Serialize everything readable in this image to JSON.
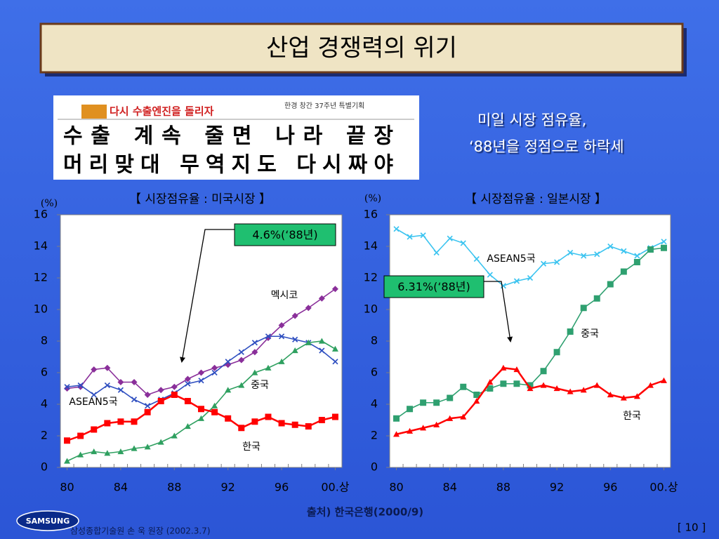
{
  "slide": {
    "title": "산업 경쟁력의 위기",
    "news": {
      "kicker": "다시 수출엔진을 돌리자",
      "masthead": "한경 창간 37주년 특별기획",
      "headline": [
        "수출 계속 줄면 나라 끝장",
        "머리맞대 무역지도 다시짜야"
      ]
    },
    "bullet": [
      "미일 시장 점유율,",
      "‘88년을 정점으로 하락세"
    ],
    "source": "출처) 한국은행(2000/9)",
    "logo": "SAMSUNG",
    "footer": "삼성종합기술원 손 욱 원장 (2002.3.7)",
    "page": "[ 10 ]"
  },
  "chart_data": [
    {
      "type": "line",
      "title": "【 시장점유율 : 미국시장 】",
      "y_label": "(%)",
      "x": [
        80,
        81,
        82,
        83,
        84,
        85,
        86,
        87,
        88,
        89,
        90,
        91,
        92,
        93,
        94,
        95,
        96,
        97,
        98,
        99,
        100
      ],
      "xlim": [
        79.5,
        100.5
      ],
      "xticks": [
        80,
        84,
        88,
        92,
        96,
        {
          "value": 100,
          "label": "00.상"
        }
      ],
      "ylim": [
        0,
        16
      ],
      "yticks": [
        0,
        2,
        4,
        6,
        8,
        10,
        12,
        14,
        16
      ],
      "series": [
        {
          "name": "멕시코",
          "color": "#8a2f9a",
          "marker": "diamond",
          "values": [
            5.0,
            5.1,
            6.2,
            6.3,
            5.4,
            5.4,
            4.6,
            4.9,
            5.1,
            5.6,
            6.0,
            6.3,
            6.5,
            6.8,
            7.3,
            8.2,
            9.0,
            9.6,
            10.1,
            10.7,
            11.3
          ]
        },
        {
          "name": "ASEAN5국",
          "color": "#2f4fc0",
          "marker": "x",
          "values": [
            5.1,
            5.2,
            4.6,
            5.2,
            4.9,
            4.3,
            3.9,
            4.3,
            4.7,
            5.3,
            5.5,
            6.0,
            6.7,
            7.3,
            7.9,
            8.3,
            8.3,
            8.1,
            7.9,
            7.4,
            6.7
          ]
        },
        {
          "name": "중국",
          "color": "#2fa060",
          "marker": "triangle",
          "values": [
            0.4,
            0.8,
            1.0,
            0.9,
            1.0,
            1.2,
            1.3,
            1.6,
            2.0,
            2.6,
            3.1,
            3.9,
            4.9,
            5.2,
            6.0,
            6.3,
            6.7,
            7.4,
            7.9,
            8.0,
            7.5
          ]
        },
        {
          "name": "한국",
          "color": "#ff0000",
          "marker": "square",
          "values": [
            1.7,
            2.0,
            2.4,
            2.8,
            2.9,
            2.9,
            3.5,
            4.2,
            4.6,
            4.2,
            3.7,
            3.5,
            3.1,
            2.5,
            2.9,
            3.2,
            2.8,
            2.7,
            2.6,
            3.0,
            3.2
          ]
        }
      ],
      "annotation": "4.6%(‘88년)"
    },
    {
      "type": "line",
      "title": "【 시장점유율 : 일본시장 】",
      "y_label": "(%)",
      "x": [
        80,
        81,
        82,
        83,
        84,
        85,
        86,
        87,
        88,
        89,
        90,
        91,
        92,
        93,
        94,
        95,
        96,
        97,
        98,
        99,
        100
      ],
      "xlim": [
        79.5,
        100.5
      ],
      "xticks": [
        80,
        84,
        88,
        92,
        96,
        {
          "value": 100,
          "label": "00.상"
        }
      ],
      "ylim": [
        0,
        16
      ],
      "yticks": [
        0,
        2,
        4,
        6,
        8,
        10,
        12,
        14,
        16
      ],
      "series": [
        {
          "name": "ASEAN5국",
          "color": "#3cc4f0",
          "marker": "x",
          "values": [
            15.1,
            14.6,
            14.7,
            13.6,
            14.5,
            14.2,
            13.2,
            12.2,
            11.5,
            11.8,
            12.0,
            12.9,
            13.0,
            13.6,
            13.4,
            13.5,
            14.0,
            13.7,
            13.4,
            13.9,
            14.3
          ]
        },
        {
          "name": "중국",
          "color": "#2fa070",
          "marker": "square",
          "values": [
            3.1,
            3.7,
            4.1,
            4.1,
            4.4,
            5.1,
            4.6,
            5.0,
            5.3,
            5.3,
            5.2,
            6.1,
            7.3,
            8.6,
            10.1,
            10.7,
            11.6,
            12.4,
            13.0,
            13.8,
            13.9
          ]
        },
        {
          "name": "한국",
          "color": "#ff0000",
          "marker": "triangle",
          "values": [
            2.1,
            2.3,
            2.5,
            2.7,
            3.1,
            3.2,
            4.2,
            5.4,
            6.3,
            6.2,
            5.0,
            5.2,
            5.0,
            4.8,
            4.9,
            5.2,
            4.6,
            4.4,
            4.5,
            5.2,
            5.5
          ]
        }
      ],
      "annotation": "6.31%(‘88년)"
    }
  ]
}
